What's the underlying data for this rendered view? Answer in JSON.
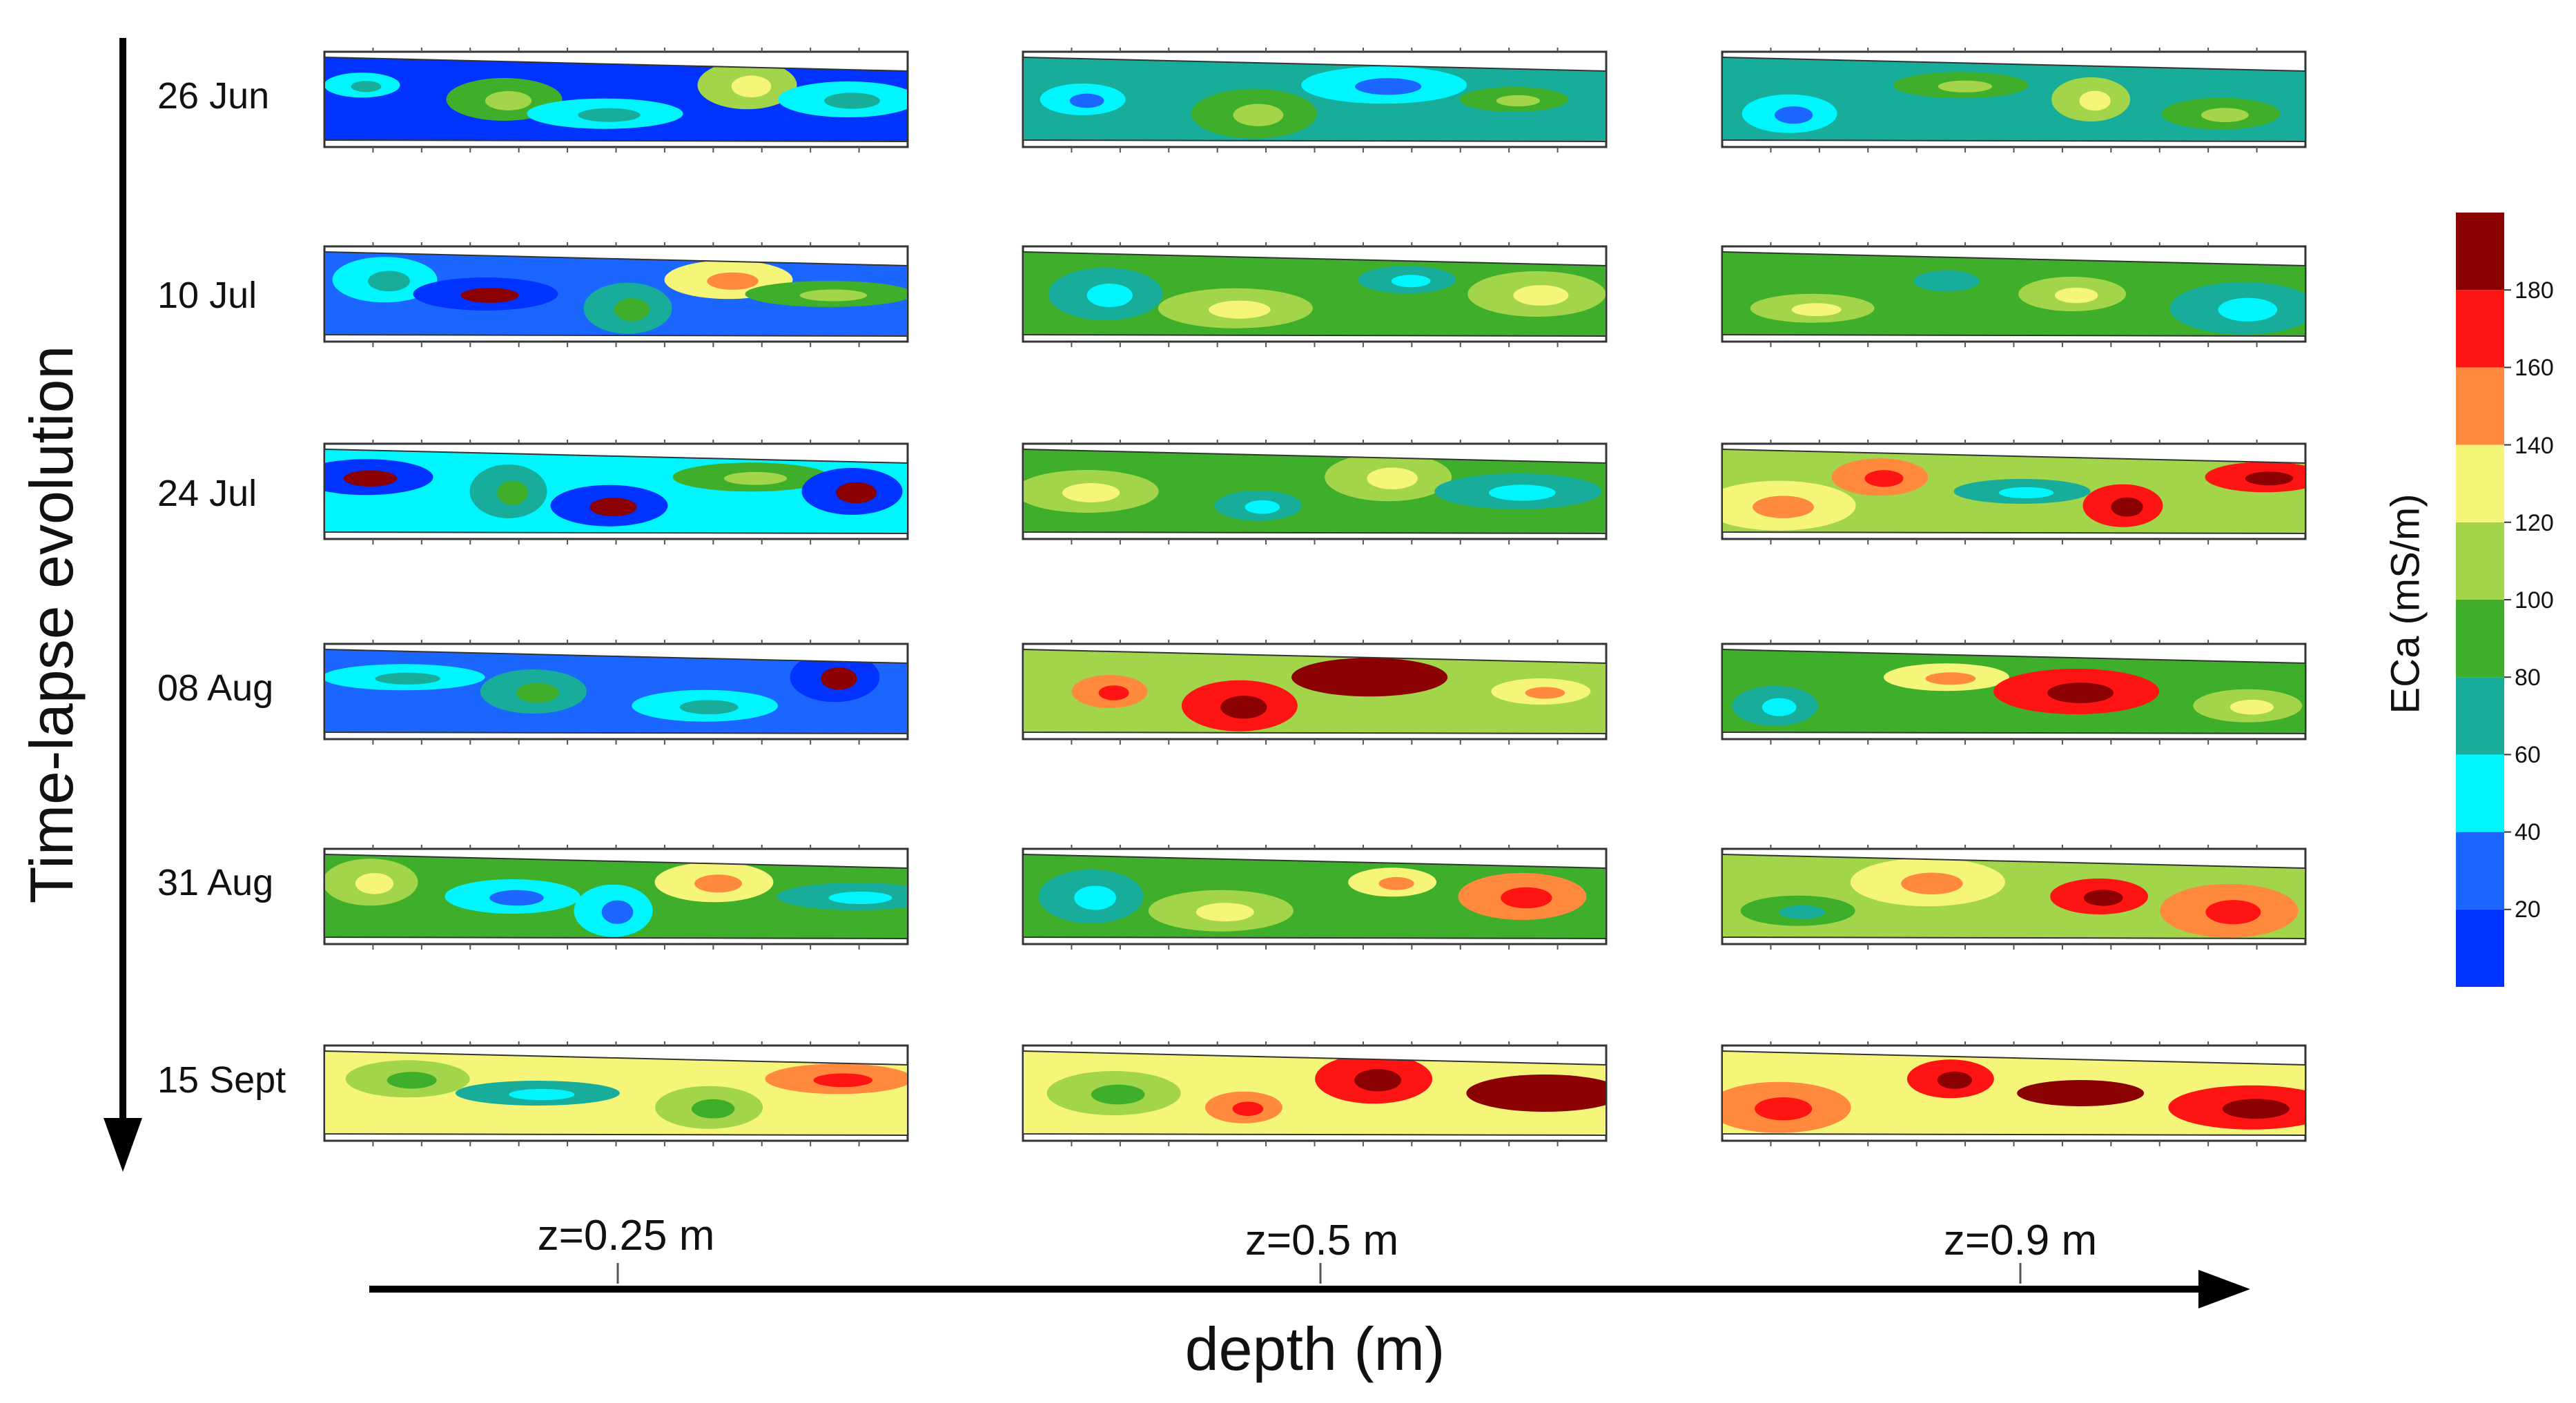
{
  "chart_data": {
    "type": "heatmap",
    "title": "",
    "row_axis_title": "Time-lapse evolution",
    "column_axis_title": "depth (m)",
    "dates": [
      "26 Jun",
      "10 Jul",
      "24 Jul",
      "08 Aug",
      "31 Aug",
      "15 Sept"
    ],
    "depths": [
      "z=0.25 m",
      "z=0.5 m",
      "z=0.9 m"
    ],
    "depth_values_m": [
      0.25,
      0.5,
      0.9
    ],
    "colorbar": {
      "label": "ECa (mS/m)",
      "range": [
        0,
        200
      ],
      "ticks": [
        20,
        40,
        60,
        80,
        100,
        120,
        140,
        160,
        180
      ],
      "bins": [
        {
          "from": 0,
          "to": 20,
          "color": "#0033ff"
        },
        {
          "from": 20,
          "to": 40,
          "color": "#1a66ff"
        },
        {
          "from": 40,
          "to": 60,
          "color": "#00f5ff"
        },
        {
          "from": 60,
          "to": 80,
          "color": "#17ad9a"
        },
        {
          "from": 80,
          "to": 100,
          "color": "#3fae2a"
        },
        {
          "from": 100,
          "to": 120,
          "color": "#a2d54a"
        },
        {
          "from": 120,
          "to": 140,
          "color": "#f5f57a"
        },
        {
          "from": 140,
          "to": 160,
          "color": "#ff8a3d"
        },
        {
          "from": 160,
          "to": 180,
          "color": "#ff1414"
        },
        {
          "from": 180,
          "to": 200,
          "color": "#8b0000"
        }
      ]
    },
    "panels_dominant_eca": [
      {
        "date": "26 Jun",
        "depth": "z=0.25 m",
        "base": 15,
        "spots": [
          40,
          90,
          50,
          110,
          45
        ]
      },
      {
        "date": "26 Jun",
        "depth": "z=0.5 m",
        "base": 70,
        "spots": [
          50,
          90,
          50,
          85
        ]
      },
      {
        "date": "26 Jun",
        "depth": "z=0.9 m",
        "base": 75,
        "spots": [
          50,
          95,
          110,
          90
        ]
      },
      {
        "date": "10 Jul",
        "depth": "z=0.25 m",
        "base": 30,
        "spots": [
          50,
          15,
          70,
          130,
          90
        ]
      },
      {
        "date": "10 Jul",
        "depth": "z=0.5 m",
        "base": 85,
        "spots": [
          70,
          110,
          75,
          110
        ]
      },
      {
        "date": "10 Jul",
        "depth": "z=0.9 m",
        "base": 95,
        "spots": [
          110,
          80,
          115,
          70
        ]
      },
      {
        "date": "24 Jul",
        "depth": "z=0.25 m",
        "base": 45,
        "spots": [
          15,
          70,
          15,
          90,
          15
        ]
      },
      {
        "date": "24 Jul",
        "depth": "z=0.5 m",
        "base": 90,
        "spots": [
          110,
          70,
          110,
          75
        ]
      },
      {
        "date": "24 Jul",
        "depth": "z=0.9 m",
        "base": 100,
        "spots": [
          130,
          150,
          70,
          170,
          165
        ]
      },
      {
        "date": "08 Aug",
        "depth": "z=0.25 m",
        "base": 20,
        "spots": [
          50,
          70,
          50,
          15
        ]
      },
      {
        "date": "08 Aug",
        "depth": "z=0.5 m",
        "base": 110,
        "spots": [
          150,
          170,
          190,
          130
        ]
      },
      {
        "date": "08 Aug",
        "depth": "z=0.9 m",
        "base": 90,
        "spots": [
          70,
          130,
          160,
          110
        ]
      },
      {
        "date": "31 Aug",
        "depth": "z=0.25 m",
        "base": 90,
        "spots": [
          110,
          50,
          45,
          130,
          75
        ]
      },
      {
        "date": "31 Aug",
        "depth": "z=0.5 m",
        "base": 90,
        "spots": [
          70,
          110,
          130,
          150
        ]
      },
      {
        "date": "31 Aug",
        "depth": "z=0.9 m",
        "base": 105,
        "spots": [
          85,
          130,
          165,
          150
        ]
      },
      {
        "date": "15 Sept",
        "depth": "z=0.25 m",
        "base": 130,
        "spots": [
          110,
          70,
          110,
          150
        ]
      },
      {
        "date": "15 Sept",
        "depth": "z=0.5 m",
        "base": 120,
        "spots": [
          110,
          150,
          175,
          190
        ]
      },
      {
        "date": "15 Sept",
        "depth": "z=0.9 m",
        "base": 135,
        "spots": [
          150,
          170,
          190,
          160
        ]
      }
    ]
  }
}
